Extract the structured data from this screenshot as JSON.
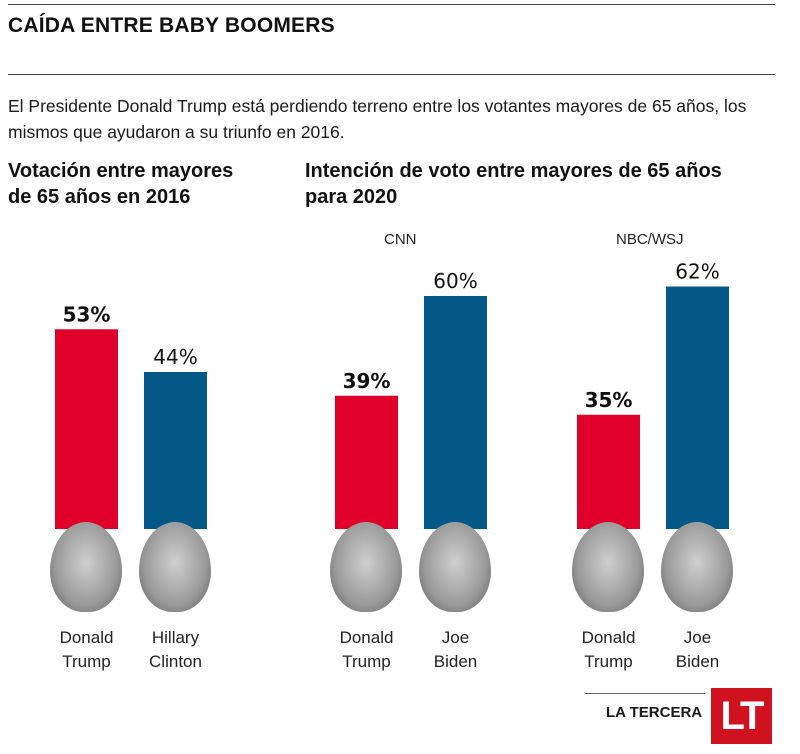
{
  "header": {
    "title": "CAÍDA ENTRE BABY BOOMERS",
    "intro": "El Presidente Donald Trump está perdiendo terreno entre los votantes mayores de 65 años, los mismos que ayudaron a su triunfo en 2016."
  },
  "colors": {
    "republican": "#e0002a",
    "democrat": "#045887"
  },
  "chart_data": [
    {
      "type": "bar",
      "title": "Votación entre mayores de 65 años en 2016",
      "source_label": "",
      "categories": [
        "Donald Trump",
        "Hillary Clinton"
      ],
      "values": [
        53,
        44
      ],
      "value_labels": [
        "53%",
        "44%"
      ],
      "winner_index": 0,
      "ylim": [
        0,
        100
      ],
      "unit": "%"
    },
    {
      "type": "bar",
      "title": "Intención de voto entre mayores de 65 años para 2020",
      "source_label": "CNN",
      "categories": [
        "Donald Trump",
        "Joe Biden"
      ],
      "values": [
        39,
        60
      ],
      "value_labels": [
        "39%",
        "60%"
      ],
      "ylim": [
        0,
        100
      ],
      "unit": "%"
    },
    {
      "type": "bar",
      "title": "Intención de voto entre mayores de 65 años para 2020",
      "source_label": "NBC/WSJ",
      "categories": [
        "Donald Trump",
        "Joe Biden"
      ],
      "values": [
        35,
        62
      ],
      "value_labels": [
        "35%",
        "62%"
      ],
      "ylim": [
        0,
        100
      ],
      "unit": "%"
    }
  ],
  "sections": {
    "left_title_1": "Votación entre mayores",
    "left_title_2": "de 65 años en 2016",
    "right_title_1": "Intención de voto entre mayores de 65 años",
    "right_title_2": "para 2020",
    "source_cnn": "CNN",
    "source_nbc": "NBC/WSJ"
  },
  "names": [
    [
      "Donald",
      "Trump"
    ],
    [
      "Hillary",
      "Clinton"
    ],
    [
      "Donald",
      "Trump"
    ],
    [
      "Joe",
      "Biden"
    ],
    [
      "Donald",
      "Trump"
    ],
    [
      "Joe",
      "Biden"
    ]
  ],
  "footer": {
    "brand": "LA TERCERA",
    "logo": "LT"
  }
}
